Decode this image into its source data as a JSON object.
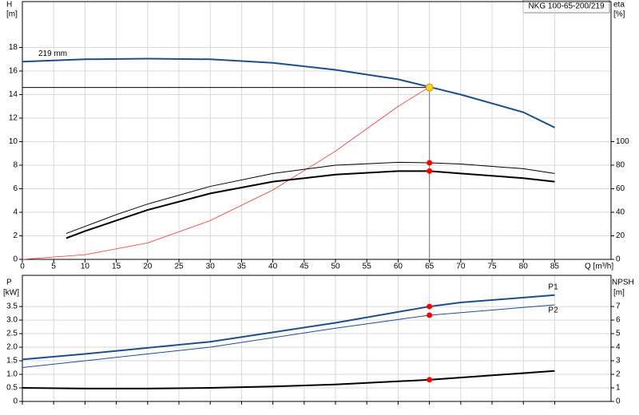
{
  "chart_data": [
    {
      "type": "line",
      "title": "NKG 100-65-200/219",
      "y_label": "H",
      "y_unit": "[m]",
      "y2_label": "eta",
      "y2_unit": "[%]",
      "x_label": "Q [m³/h]",
      "xlim": [
        0,
        94
      ],
      "xticks": [
        0,
        5,
        10,
        15,
        20,
        25,
        30,
        35,
        40,
        45,
        50,
        55,
        60,
        65,
        70,
        75,
        80,
        85
      ],
      "ylim": [
        0,
        21.9
      ],
      "yticks": [
        0,
        2,
        4,
        6,
        8,
        10,
        12,
        14,
        16,
        18
      ],
      "y2lim": [
        0,
        219
      ],
      "y2ticks": [
        0,
        20,
        40,
        60,
        80,
        100
      ],
      "grid": true,
      "series": [
        {
          "name": "219 mm",
          "color": "#1c4f8a",
          "width": 2,
          "x": [
            0,
            10,
            20,
            30,
            40,
            50,
            60,
            65,
            70,
            80,
            85
          ],
          "values": [
            16.8,
            17.0,
            17.05,
            17.0,
            16.7,
            16.1,
            15.3,
            14.65,
            14.0,
            12.5,
            11.2
          ]
        },
        {
          "color": "#ff3030",
          "width": 0.8,
          "x": [
            0,
            10,
            20,
            30,
            40,
            50,
            60,
            65
          ],
          "values": [
            0,
            0.4,
            1.4,
            3.3,
            5.9,
            9.2,
            13.0,
            14.65
          ]
        },
        {
          "axis": "y2",
          "color": "#000000",
          "width": 1,
          "x": [
            7,
            10,
            15,
            20,
            30,
            40,
            50,
            60,
            65,
            70,
            80,
            85
          ],
          "values": [
            22,
            28,
            38,
            47,
            62,
            73,
            80,
            82.5,
            82,
            81,
            77,
            73
          ]
        },
        {
          "axis": "y2",
          "color": "#000000",
          "width": 2,
          "x": [
            7,
            10,
            15,
            20,
            30,
            40,
            50,
            60,
            65,
            70,
            80,
            85
          ],
          "values": [
            18,
            24,
            33,
            42,
            56,
            66,
            72,
            75,
            75,
            73,
            69,
            66
          ]
        }
      ],
      "duty_point": {
        "x": 65,
        "y": 14.6
      },
      "markers": [
        {
          "x": 65,
          "y": 14.6,
          "color": "#ffd21f"
        },
        {
          "axis": "y2",
          "x": 65,
          "y": 82,
          "color": "#ff0000"
        },
        {
          "axis": "y2",
          "x": 65,
          "y": 75,
          "color": "#ff0000"
        }
      ]
    },
    {
      "type": "line",
      "y_label": "P",
      "y_unit": "[kW]",
      "y2_label": "NPSH",
      "y2_unit": "[m]",
      "ylim": [
        0,
        4.65
      ],
      "yticks": [
        0,
        0.5,
        {
          "value": 1,
          "label": "1.0"
        },
        1.5,
        {
          "value": 2,
          "label": "2.0"
        },
        2.5,
        {
          "value": 3,
          "label": "3.0"
        },
        3.5
      ],
      "y2lim": [
        0,
        9.3
      ],
      "y2ticks": [
        0,
        1,
        2,
        3,
        4,
        5,
        6,
        7
      ],
      "grid": true,
      "series": [
        {
          "name": "P1",
          "color": "#1c4f8a",
          "width": 2,
          "x": [
            0,
            10,
            30,
            50,
            65,
            70,
            85
          ],
          "values": [
            1.55,
            1.75,
            2.2,
            2.9,
            3.5,
            3.65,
            3.92
          ]
        },
        {
          "name": "P2",
          "color": "#1c4f8a",
          "width": 1,
          "x": [
            0,
            30,
            50,
            65,
            85
          ],
          "values": [
            1.25,
            2.0,
            2.7,
            3.18,
            3.56
          ]
        },
        {
          "axis": "y2",
          "color": "#000000",
          "width": 2,
          "x": [
            0,
            10,
            20,
            30,
            40,
            50,
            65,
            85
          ],
          "values": [
            1.0,
            0.95,
            0.95,
            1.0,
            1.1,
            1.25,
            1.6,
            2.25
          ]
        }
      ],
      "markers": [
        {
          "x": 65,
          "y": 3.5,
          "color": "#ff0000"
        },
        {
          "x": 65,
          "y": 3.18,
          "color": "#ff0000"
        },
        {
          "axis": "y2",
          "x": 65,
          "y": 1.6,
          "color": "#ff0000"
        }
      ]
    }
  ]
}
